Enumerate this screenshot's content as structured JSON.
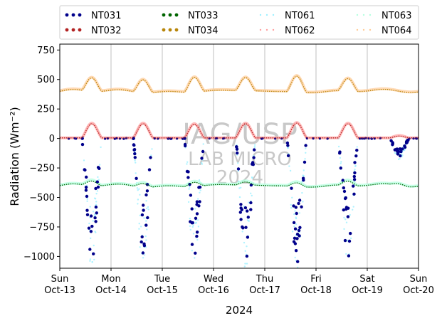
{
  "chart_data": {
    "type": "scatter",
    "title": "",
    "xlabel": "2024",
    "ylabel": "Radiation",
    "ylabel_unit": "(Wm⁻²)",
    "ylim": [
      -1100,
      800
    ],
    "xlim": [
      0,
      7
    ],
    "y_ticks": [
      -1000,
      -750,
      -500,
      -250,
      0,
      250,
      500,
      750
    ],
    "x_ticks": [
      {
        "x": 0,
        "day": "Sun",
        "date": "Oct-13"
      },
      {
        "x": 1,
        "day": "Mon",
        "date": "Oct-14"
      },
      {
        "x": 2,
        "day": "Tue",
        "date": "Oct-15"
      },
      {
        "x": 3,
        "day": "Wed",
        "date": "Oct-16"
      },
      {
        "x": 4,
        "day": "Thu",
        "date": "Oct-17"
      },
      {
        "x": 5,
        "day": "Fri",
        "date": "Oct-18"
      },
      {
        "x": 6,
        "day": "Sat",
        "date": "Oct-19"
      },
      {
        "x": 7,
        "day": "Sun",
        "date": "Oct-20"
      }
    ],
    "grid": "x",
    "legend_position": "top (above plot), 4 columns",
    "watermark": [
      "IAG/USP",
      "LAB MICRO",
      "2024"
    ],
    "series": [
      {
        "name": "NT031",
        "color": "#00008b",
        "style": "dots",
        "base": 0,
        "amp": [
          -1000,
          -1000,
          -950,
          -1000,
          -1050,
          -1000,
          -150
        ]
      },
      {
        "name": "NT032",
        "color": "#b22222",
        "style": "dots",
        "base": 5,
        "amp": [
          120,
          120,
          115,
          120,
          125,
          120,
          15
        ]
      },
      {
        "name": "NT033",
        "color": "#006400",
        "style": "dots",
        "base": -400,
        "amp": [
          40,
          30,
          35,
          25,
          30,
          35,
          15
        ]
      },
      {
        "name": "NT034",
        "color": "#b8860b",
        "style": "dots",
        "base": 400,
        "amp": [
          115,
          110,
          125,
          110,
          135,
          105,
          0
        ]
      },
      {
        "name": "NT061",
        "color": "#9ef0ff",
        "style": "faint",
        "base": 0,
        "amp": [
          -1080,
          -1050,
          -1020,
          -1060,
          -1100,
          -1050,
          -170
        ]
      },
      {
        "name": "NT062",
        "color": "#ffa0a0",
        "style": "faint",
        "base": 5,
        "amp": [
          125,
          125,
          120,
          125,
          130,
          125,
          20
        ]
      },
      {
        "name": "NT063",
        "color": "#b5ffe0",
        "style": "faint",
        "base": -395,
        "amp": [
          45,
          35,
          40,
          30,
          35,
          40,
          15
        ]
      },
      {
        "name": "NT064",
        "color": "#ffcc99",
        "style": "faint",
        "base": 405,
        "amp": [
          115,
          110,
          125,
          110,
          135,
          105,
          0
        ]
      }
    ]
  }
}
